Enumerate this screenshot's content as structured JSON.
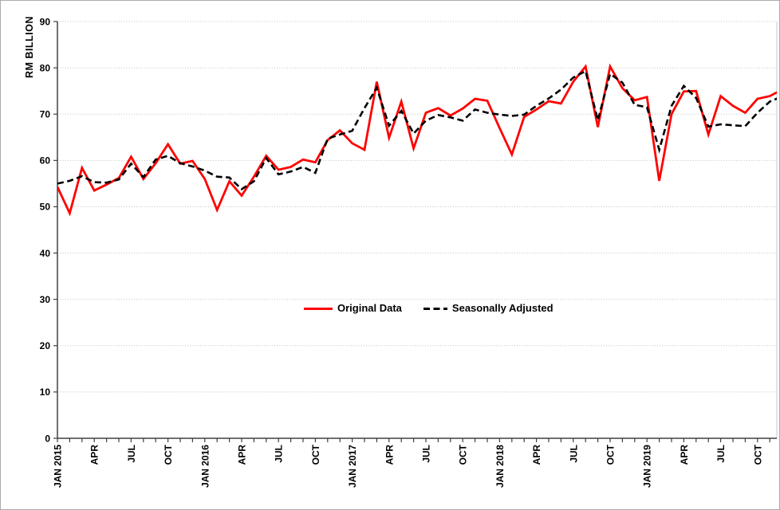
{
  "chart_data": {
    "type": "line",
    "title": "",
    "ylabel": "RM BILLION",
    "xlabel": "",
    "ylim": [
      0,
      90
    ],
    "ytick_step": 10,
    "grid": "horizontal-dotted",
    "legend_position": "center-inside-plot",
    "x_unit": "month",
    "x_range": "JAN 2015 - DEC 2019",
    "x_tick_labels": [
      "JAN 2015",
      "APR",
      "JUL",
      "OCT",
      "JAN 2016",
      "APR",
      "JUL",
      "OCT",
      "JAN 2017",
      "APR",
      "JUL",
      "OCT",
      "JAN 2018",
      "APR",
      "JUL",
      "OCT",
      "JAN 2019",
      "APR",
      "JUL",
      "OCT"
    ],
    "x_label_every": 3,
    "series": [
      {
        "name": "Original Data",
        "color": "#FF0000",
        "style": "solid",
        "values": [
          54.3,
          48.6,
          58.4,
          53.5,
          54.8,
          56.2,
          60.8,
          56.0,
          59.4,
          63.5,
          59.3,
          59.9,
          56.0,
          49.3,
          55.5,
          52.4,
          56.5,
          61.0,
          58.0,
          58.6,
          60.2,
          59.6,
          64.4,
          66.5,
          63.7,
          62.3,
          77.0,
          64.9,
          72.7,
          62.6,
          70.3,
          71.3,
          69.7,
          71.2,
          73.3,
          72.9,
          67.0,
          61.3,
          69.4,
          71.0,
          72.8,
          72.3,
          77.0,
          80.3,
          67.2,
          80.3,
          75.6,
          73.0,
          73.7,
          55.6,
          70.0,
          74.9,
          75.0,
          65.6,
          73.9,
          71.8,
          70.3,
          73.3,
          73.9,
          75.3
        ]
      },
      {
        "name": "Seasonally Adjusted",
        "color": "#000000",
        "style": "dashed",
        "values": [
          55.0,
          55.6,
          56.6,
          55.3,
          55.2,
          55.9,
          59.3,
          56.4,
          60.2,
          61.0,
          59.4,
          58.7,
          57.8,
          56.5,
          56.3,
          53.8,
          55.5,
          60.5,
          57.0,
          57.6,
          58.6,
          57.3,
          64.7,
          65.6,
          66.4,
          71.3,
          75.7,
          67.5,
          70.7,
          65.8,
          68.6,
          69.8,
          69.3,
          68.6,
          71.0,
          70.3,
          69.9,
          69.6,
          69.9,
          71.8,
          73.4,
          75.3,
          77.9,
          79.3,
          68.7,
          78.7,
          76.8,
          72.0,
          71.5,
          62.3,
          71.8,
          76.1,
          73.5,
          67.3,
          67.8,
          67.6,
          67.4,
          70.3,
          72.7,
          73.8
        ]
      }
    ]
  }
}
